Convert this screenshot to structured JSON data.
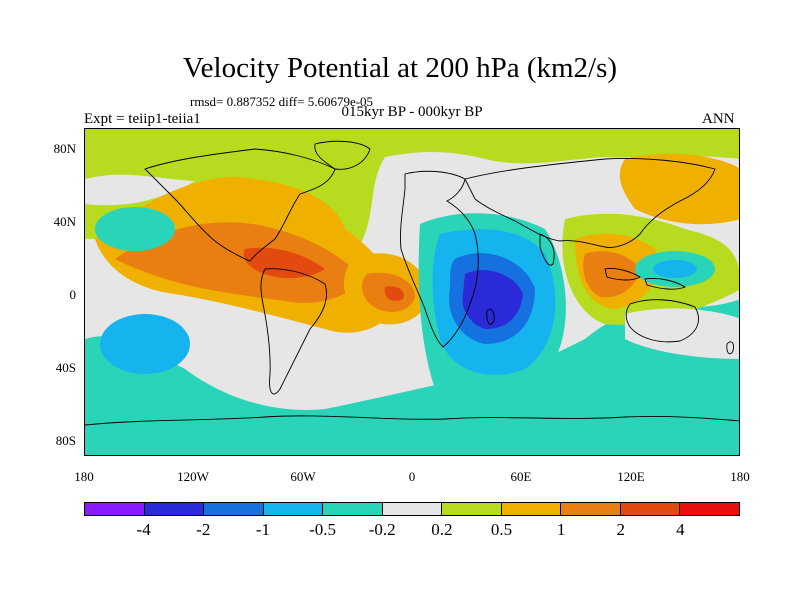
{
  "header": {
    "title": "Velocity Potential at 200 hPa (km2/s)",
    "stats": "rmsd= 0.887352 diff= 5.60679e-05",
    "subtitle": "015kyr BP - 000kyr BP",
    "left_string": "Expt = teiip1-teiia1",
    "right_string": "ANN"
  },
  "map": {
    "projection": "cylindrical-equidistant",
    "lon_range": [
      -180,
      180
    ],
    "lat_range": [
      -90,
      90
    ],
    "lat_ticks": [
      "80N",
      "40N",
      "0",
      "40S",
      "80S"
    ],
    "lon_ticks": [
      "180",
      "120W",
      "60W",
      "0",
      "60E",
      "120E",
      "180"
    ],
    "field": "velocity potential anomaly",
    "features": [
      {
        "region": "Central Pacific to Atlantic tropics",
        "sign": "positive",
        "peak_level": "2 to 4"
      },
      {
        "region": "Tropical Atlantic off West Africa",
        "sign": "positive",
        "peak_level": "2 to 4"
      },
      {
        "region": "Indian Ocean / Madagascar",
        "sign": "negative",
        "peak_level": "-4 to -2"
      },
      {
        "region": "Maritime Continent / East Asia",
        "sign": "positive",
        "peak_level": "1 to 2"
      },
      {
        "region": "Southern Ocean",
        "sign": "negative",
        "peak_level": "-0.5 to -0.2"
      }
    ]
  },
  "colorbar": {
    "colors": [
      "#8a1bff",
      "#2a2ad8",
      "#1570e0",
      "#15b4ee",
      "#2ad4b9",
      "#e6e6e6",
      "#b7db1e",
      "#f0b000",
      "#e87f10",
      "#e34a10",
      "#e80f0f"
    ],
    "labels": [
      "-4",
      "-2",
      "-1",
      "-0.5",
      "-0.2",
      "0.2",
      "0.5",
      "1",
      "2",
      "4"
    ]
  }
}
